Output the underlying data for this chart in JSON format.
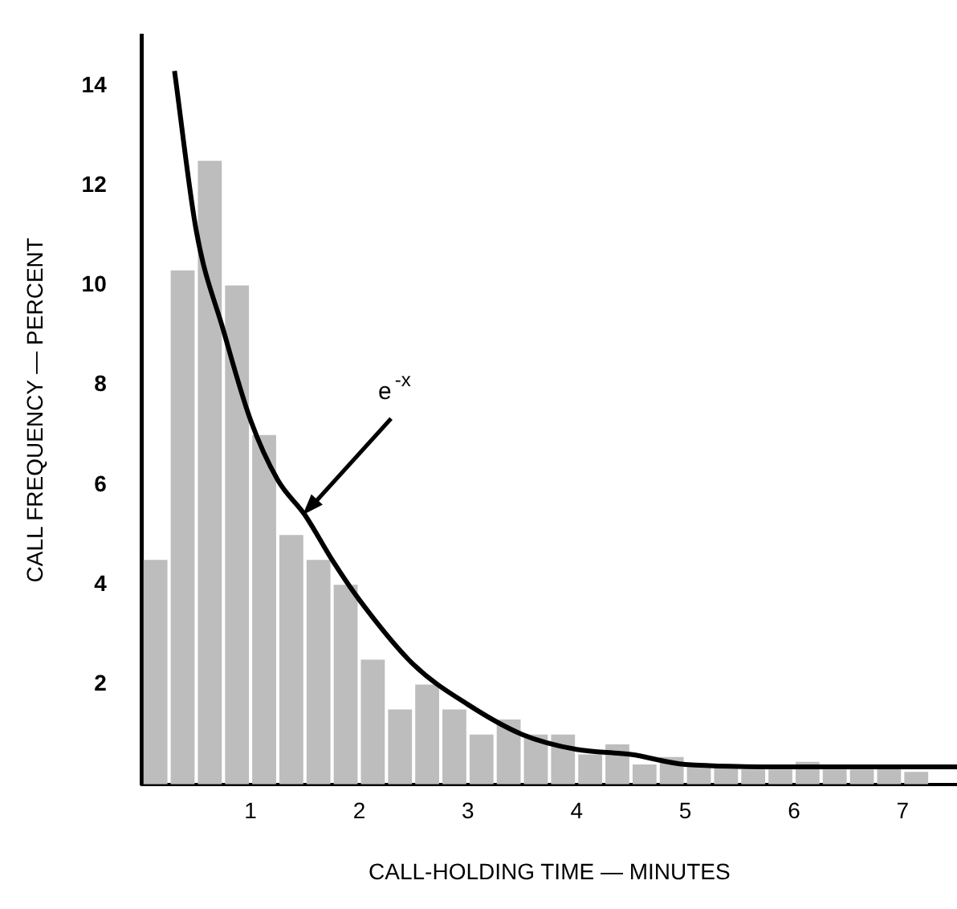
{
  "chart_data": {
    "type": "histogram",
    "xlabel": "CALL-HOLDING TIME — MINUTES",
    "ylabel": "CALL FREQUENCY — PERCENT",
    "bins": [
      0,
      0.25,
      0.5,
      0.75,
      1,
      1.25,
      1.5,
      1.75,
      2,
      2.25,
      2.5,
      2.75,
      3,
      3.25,
      3.5,
      3.75,
      4,
      4.25,
      4.5,
      4.75,
      5,
      5.25,
      5.5,
      5.75,
      6,
      6.25,
      6.5,
      6.75,
      7,
      7.25
    ],
    "values": [
      4.5,
      10.3,
      12.5,
      10,
      7,
      5,
      4.5,
      4,
      2.5,
      1.5,
      2,
      1.5,
      1,
      1.3,
      1,
      1,
      0.6,
      0.8,
      0.4,
      0.55,
      0.35,
      0.35,
      0.3,
      0.3,
      0.45,
      0.3,
      0.3,
      0.4,
      0.25
    ],
    "color": "#bdbdbd",
    "series": [
      {
        "type": "line",
        "color": "#000000",
        "x": [
          0.3,
          0.5,
          0.75,
          1,
          1.25,
          1.5,
          1.75,
          2,
          2.5,
          3,
          3.5,
          4,
          4.5,
          5,
          6,
          7,
          7.5
        ],
        "values": [
          14.3,
          11.1,
          9.1,
          7.3,
          6.1,
          5.4,
          4.5,
          3.7,
          2.4,
          1.6,
          1,
          0.7,
          0.6,
          0.4,
          0.35,
          0.35,
          0.35
        ]
      }
    ],
    "marker": "none",
    "grid": false,
    "legend": false,
    "xlim": [
      0,
      7.5
    ],
    "xticks": [
      1,
      2,
      3,
      4,
      5,
      6,
      7
    ],
    "ylim": [
      0,
      15
    ],
    "yticks": [
      2,
      4,
      6,
      8,
      10,
      12,
      14
    ],
    "annotations": [
      {
        "text": "e$^{-x}$",
        "x": 1.48,
        "y": 5.4
      }
    ]
  }
}
